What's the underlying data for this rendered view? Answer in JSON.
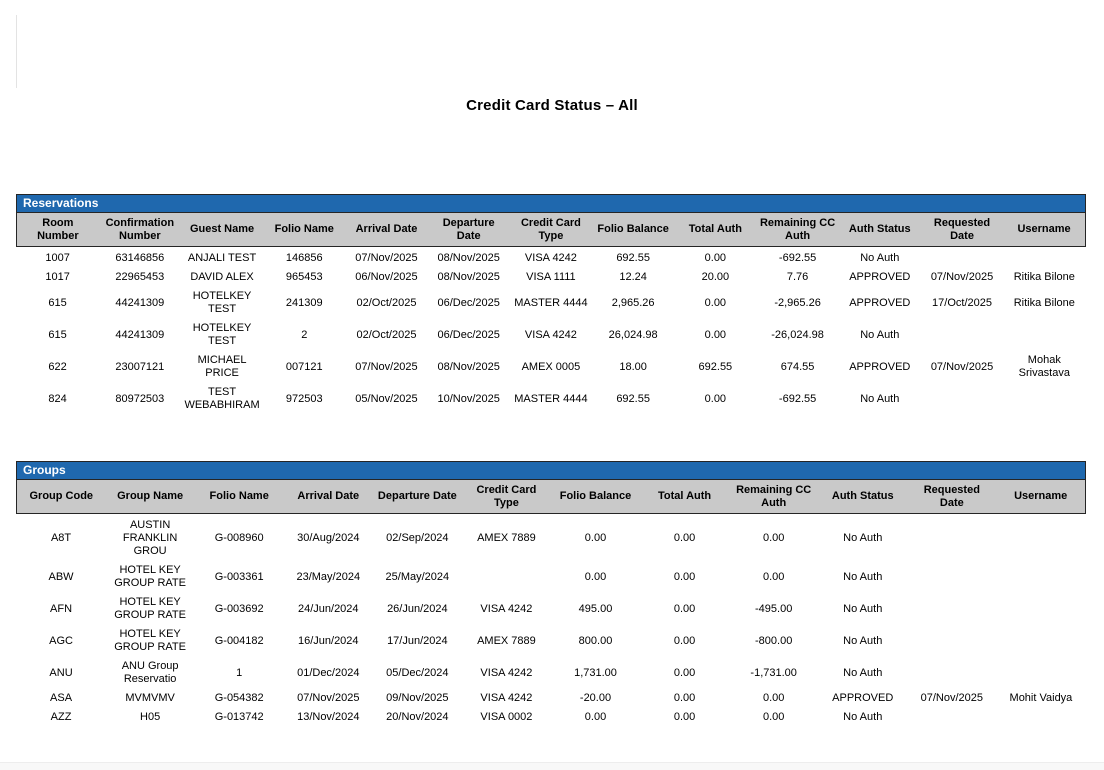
{
  "page": {
    "title": "Credit Card Status – All"
  },
  "colors": {
    "section_bar": "#1F68AE",
    "header_row": "#C9C9C9"
  },
  "reservations": {
    "section_label": "Reservations",
    "columns": [
      "Room Number",
      "Confirmation Number",
      "Guest Name",
      "Folio Name",
      "Arrival Date",
      "Departure Date",
      "Credit Card Type",
      "Folio Balance",
      "Total Auth",
      "Remaining CC Auth",
      "Auth Status",
      "Requested Date",
      "Username"
    ],
    "rows": [
      [
        "1007",
        "63146856",
        "ANJALI TEST",
        "146856",
        "07/Nov/2025",
        "08/Nov/2025",
        "VISA 4242",
        "692.55",
        "0.00",
        "-692.55",
        "No Auth",
        "",
        ""
      ],
      [
        "1017",
        "22965453",
        "DAVID ALEX",
        "965453",
        "06/Nov/2025",
        "08/Nov/2025",
        "VISA 1111",
        "12.24",
        "20.00",
        "7.76",
        "APPROVED",
        "07/Nov/2025",
        "Ritika Bilone"
      ],
      [
        "615",
        "44241309",
        "HOTELKEY TEST",
        "241309",
        "02/Oct/2025",
        "06/Dec/2025",
        "MASTER 4444",
        "2,965.26",
        "0.00",
        "-2,965.26",
        "APPROVED",
        "17/Oct/2025",
        "Ritika Bilone"
      ],
      [
        "615",
        "44241309",
        "HOTELKEY TEST",
        "2",
        "02/Oct/2025",
        "06/Dec/2025",
        "VISA 4242",
        "26,024.98",
        "0.00",
        "-26,024.98",
        "No Auth",
        "",
        ""
      ],
      [
        "622",
        "23007121",
        "MICHAEL PRICE",
        "007121",
        "07/Nov/2025",
        "08/Nov/2025",
        "AMEX 0005",
        "18.00",
        "692.55",
        "674.55",
        "APPROVED",
        "07/Nov/2025",
        "Mohak Srivastava"
      ],
      [
        "824",
        "80972503",
        "TEST WEBABHIRAM",
        "972503",
        "05/Nov/2025",
        "10/Nov/2025",
        "MASTER 4444",
        "692.55",
        "0.00",
        "-692.55",
        "No Auth",
        "",
        ""
      ]
    ]
  },
  "groups": {
    "section_label": "Groups",
    "columns": [
      "Group Code",
      "Group Name",
      "Folio Name",
      "Arrival Date",
      "Departure Date",
      "Credit Card Type",
      "Folio Balance",
      "Total Auth",
      "Remaining CC Auth",
      "Auth Status",
      "Requested Date",
      "Username"
    ],
    "rows": [
      [
        "A8T",
        "AUSTIN FRANKLIN GROU",
        "G-008960",
        "30/Aug/2024",
        "02/Sep/2024",
        "AMEX 7889",
        "0.00",
        "0.00",
        "0.00",
        "No Auth",
        "",
        ""
      ],
      [
        "ABW",
        "HOTEL KEY GROUP RATE",
        "G-003361",
        "23/May/2024",
        "25/May/2024",
        "",
        "0.00",
        "0.00",
        "0.00",
        "No Auth",
        "",
        ""
      ],
      [
        "AFN",
        "HOTEL KEY GROUP RATE",
        "G-003692",
        "24/Jun/2024",
        "26/Jun/2024",
        "VISA 4242",
        "495.00",
        "0.00",
        "-495.00",
        "No Auth",
        "",
        ""
      ],
      [
        "AGC",
        "HOTEL KEY GROUP RATE",
        "G-004182",
        "16/Jun/2024",
        "17/Jun/2024",
        "AMEX 7889",
        "800.00",
        "0.00",
        "-800.00",
        "No Auth",
        "",
        ""
      ],
      [
        "ANU",
        "ANU Group Reservatio",
        "1",
        "01/Dec/2024",
        "05/Dec/2024",
        "VISA 4242",
        "1,731.00",
        "0.00",
        "-1,731.00",
        "No Auth",
        "",
        ""
      ],
      [
        "ASA",
        "MVMVMV",
        "G-054382",
        "07/Nov/2025",
        "09/Nov/2025",
        "VISA 4242",
        "-20.00",
        "0.00",
        "0.00",
        "APPROVED",
        "07/Nov/2025",
        "Mohit Vaidya"
      ],
      [
        "AZZ",
        "H05",
        "G-013742",
        "13/Nov/2024",
        "20/Nov/2024",
        "VISA 0002",
        "0.00",
        "0.00",
        "0.00",
        "No Auth",
        "",
        ""
      ]
    ]
  }
}
